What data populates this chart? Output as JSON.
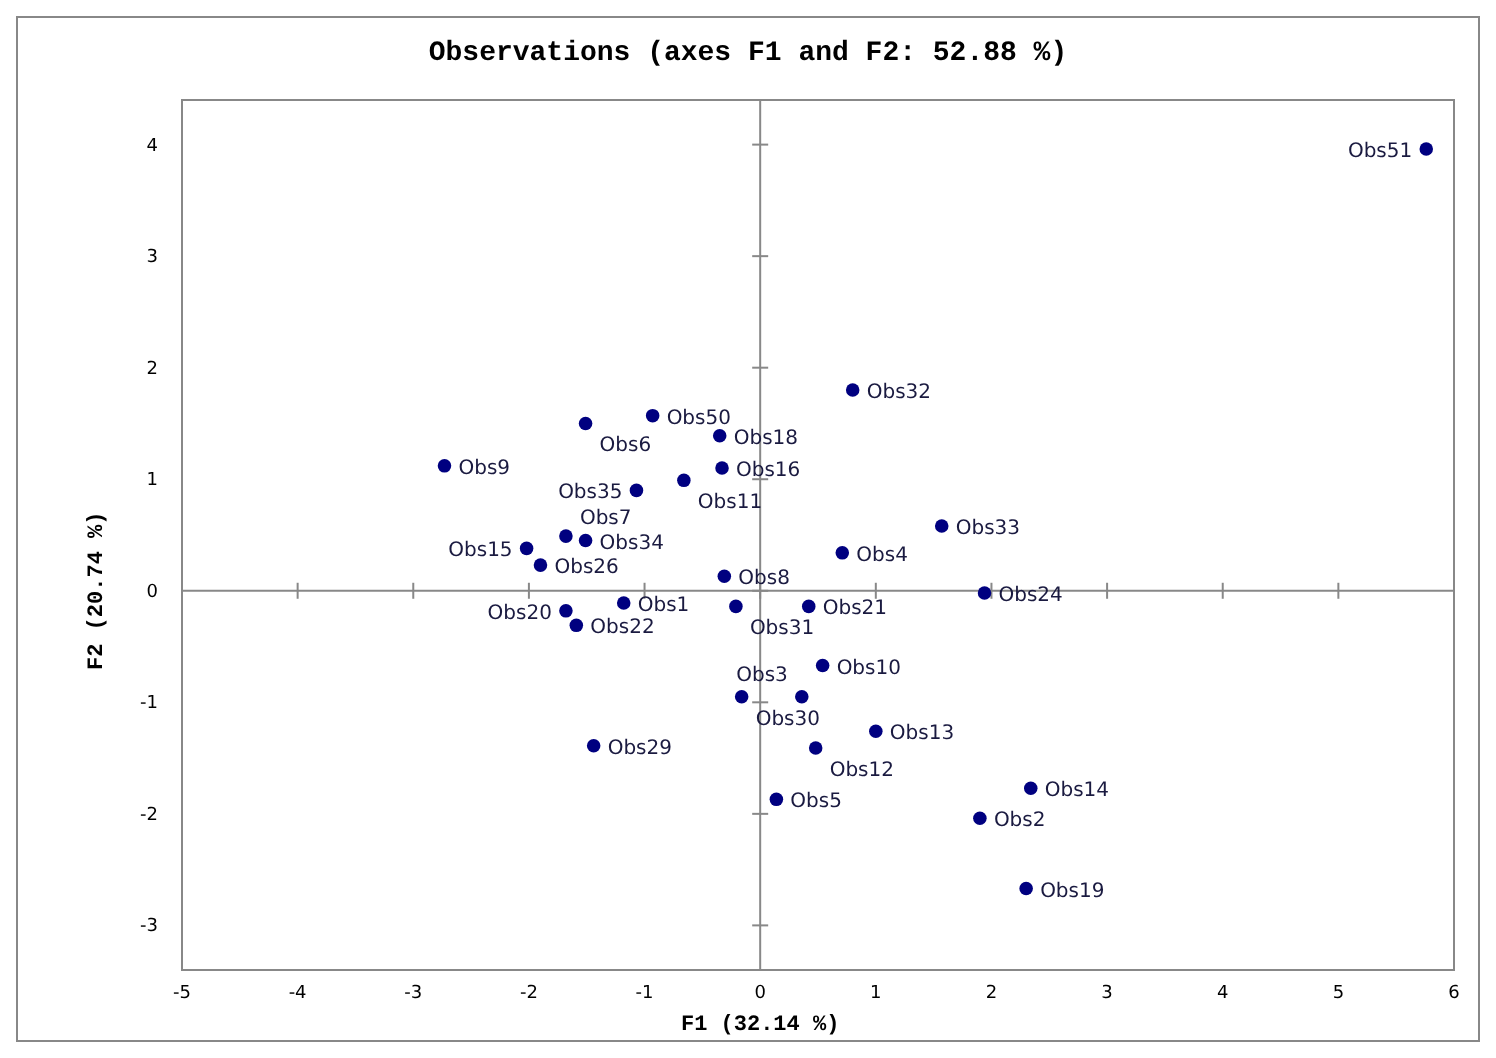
{
  "chart_data": {
    "type": "scatter",
    "title": "Observations (axes F1 and F2: 52.88 %)",
    "xlabel": "F1 (32.14 %)",
    "ylabel": "F2 (20.74 %)",
    "xlim": [
      -5,
      6
    ],
    "ylim": [
      -3.4,
      4.4
    ],
    "xticks": [
      -5,
      -4,
      -3,
      -2,
      -1,
      0,
      1,
      2,
      3,
      4,
      5,
      6
    ],
    "yticks": [
      -3,
      -2,
      -1,
      0,
      1,
      2,
      3,
      4
    ],
    "marker": "circle",
    "series": [
      {
        "color": "#000080",
        "x": [
          5.76,
          0.8,
          -0.93,
          -1.51,
          -0.35,
          -2.73,
          -0.33,
          -0.66,
          -1.07,
          1.57,
          0.71,
          -1.68,
          -1.51,
          -2.02,
          -1.9,
          -0.31,
          -1.68,
          -1.18,
          -1.59,
          -0.21,
          0.42,
          1.94,
          0.54,
          -0.16,
          0.36,
          1.0,
          0.48,
          -1.44,
          0.14,
          2.34,
          1.9,
          2.3
        ],
        "values": [
          3.96,
          1.8,
          1.57,
          1.5,
          1.39,
          1.12,
          1.1,
          0.99,
          0.9,
          0.58,
          0.34,
          0.49,
          0.45,
          0.38,
          0.23,
          0.13,
          -0.18,
          -0.11,
          -0.31,
          -0.14,
          -0.14,
          -0.02,
          -0.67,
          -0.95,
          -0.95,
          -1.26,
          -1.41,
          -1.39,
          -1.87,
          -1.77,
          -2.04,
          -2.67
        ]
      }
    ],
    "annotations": [
      {
        "text": "Obs51",
        "x": 5.76,
        "y": 3.96
      },
      {
        "text": "Obs32",
        "x": 0.8,
        "y": 1.8
      },
      {
        "text": "Obs50",
        "x": -0.93,
        "y": 1.57
      },
      {
        "text": "Obs6",
        "x": -1.51,
        "y": 1.5
      },
      {
        "text": "Obs18",
        "x": -0.35,
        "y": 1.39
      },
      {
        "text": "Obs9",
        "x": -2.73,
        "y": 1.12
      },
      {
        "text": "Obs16",
        "x": -0.33,
        "y": 1.1
      },
      {
        "text": "Obs11",
        "x": -0.66,
        "y": 0.99
      },
      {
        "text": "Obs35",
        "x": -1.07,
        "y": 0.9
      },
      {
        "text": "Obs33",
        "x": 1.57,
        "y": 0.58
      },
      {
        "text": "Obs4",
        "x": 0.71,
        "y": 0.34
      },
      {
        "text": "Obs7",
        "x": -1.68,
        "y": 0.49
      },
      {
        "text": "Obs34",
        "x": -1.51,
        "y": 0.45
      },
      {
        "text": "Obs15",
        "x": -2.02,
        "y": 0.38
      },
      {
        "text": "Obs26",
        "x": -1.9,
        "y": 0.23
      },
      {
        "text": "Obs8",
        "x": -0.31,
        "y": 0.13
      },
      {
        "text": "Obs20",
        "x": -1.68,
        "y": -0.18
      },
      {
        "text": "Obs1",
        "x": -1.18,
        "y": -0.11
      },
      {
        "text": "Obs22",
        "x": -1.59,
        "y": -0.31
      },
      {
        "text": "Obs31",
        "x": -0.21,
        "y": -0.14
      },
      {
        "text": "Obs21",
        "x": 0.42,
        "y": -0.14
      },
      {
        "text": "Obs24",
        "x": 1.94,
        "y": -0.02
      },
      {
        "text": "Obs10",
        "x": 0.54,
        "y": -0.67
      },
      {
        "text": "Obs30",
        "x": -0.16,
        "y": -0.95
      },
      {
        "text": "Obs3",
        "x": 0.36,
        "y": -0.95
      },
      {
        "text": "Obs13",
        "x": 1.0,
        "y": -1.26
      },
      {
        "text": "Obs12",
        "x": 0.48,
        "y": -1.41
      },
      {
        "text": "Obs29",
        "x": -1.44,
        "y": -1.39
      },
      {
        "text": "Obs5",
        "x": 0.14,
        "y": -1.87
      },
      {
        "text": "Obs14",
        "x": 2.34,
        "y": -1.77
      },
      {
        "text": "Obs2",
        "x": 1.9,
        "y": -2.04
      },
      {
        "text": "Obs19",
        "x": 2.3,
        "y": -2.67
      }
    ]
  }
}
